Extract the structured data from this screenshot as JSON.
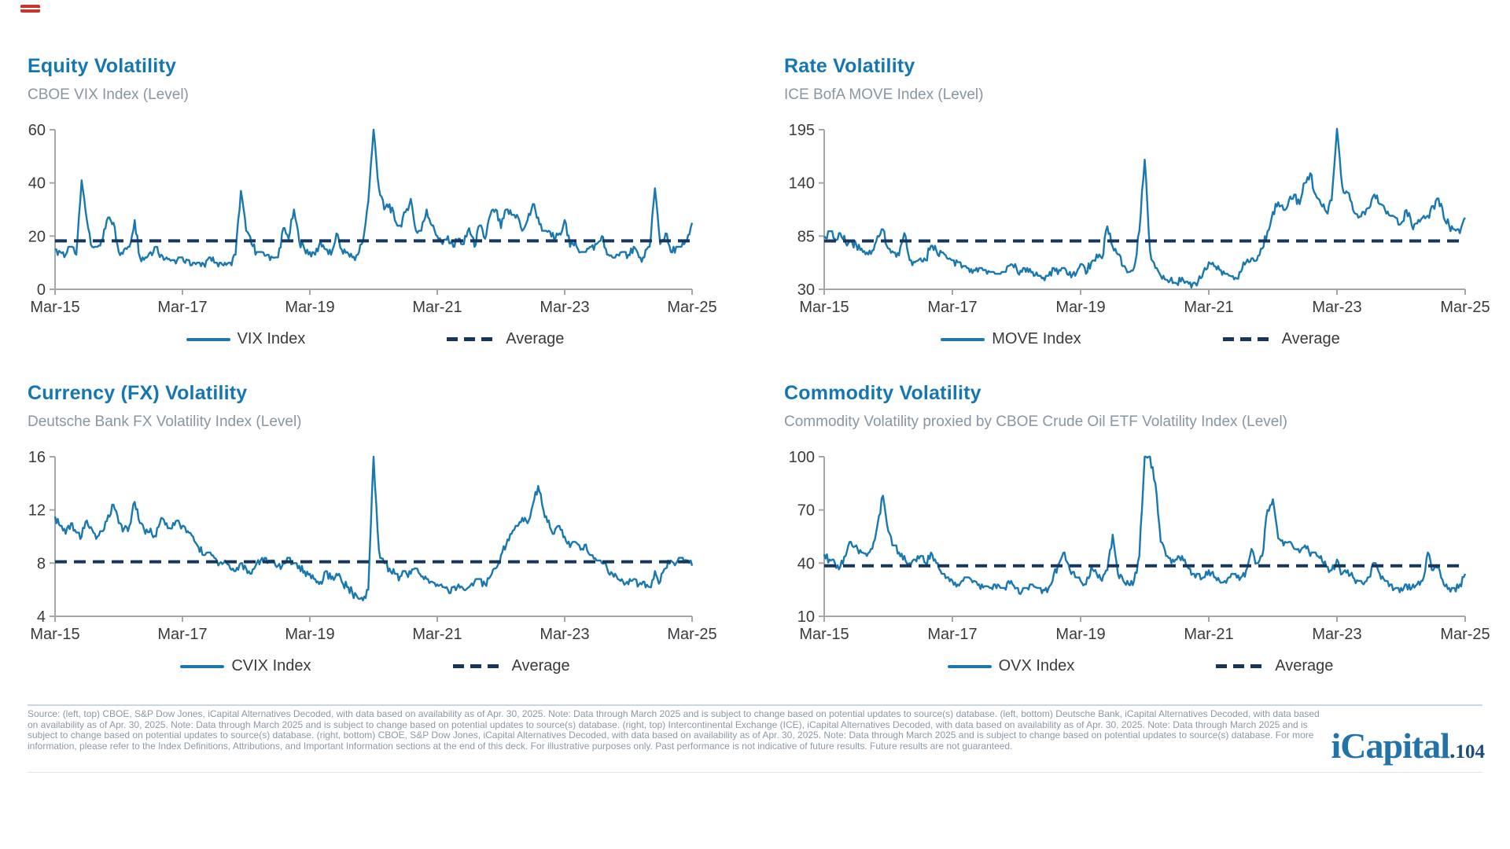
{
  "colors": {
    "accent_blue": "#1577b2",
    "series_line": "#1878af",
    "average_line": "#17365d",
    "subtitle_gray": "#8796a2",
    "axis_text": "#3a3a3e",
    "axis_line": "#a3a7ac",
    "footer_text": "#8a99a7",
    "divider": "#cbd8e2",
    "logo_blue": "#2273a9",
    "marker_red": "#c9342e"
  },
  "footer": {
    "source": "Source: (left, top) CBOE, S&P Dow Jones, iCapital Alternatives Decoded, with data based on availability as of Apr. 30, 2025. Note: Data through March 2025 and is subject to change based on potential updates to source(s) database. (left, bottom) Deutsche Bank, iCapital Alternatives Decoded, with data based on availability as of Apr. 30, 2025. Note: Data through March 2025 and is subject to change based on potential updates to source(s) database. (right, top) Intercontinental Exchange (ICE), iCapital Alternatives Decoded, with data based on availability as of Apr. 30, 2025. Note: Data through March 2025 and is subject to change based on potential updates to source(s) database. (right, bottom) CBOE, S&P Dow Jones, iCapital Alternatives Decoded, with data based on availability as of Apr. 30, 2025. Note: Data through March 2025 and is subject to change based on potential updates to source(s) database. For more information, please refer to the Index Definitions, Attributions, and Important Information sections at the end of this deck. For illustrative purposes only. Past performance is not indicative of future results. Future results are not guaranteed.",
    "logo": "iCapital",
    "logo_dot": ".",
    "page_number": "104"
  },
  "chart_data": [
    {
      "type": "line",
      "title": "Equity Volatility",
      "subtitle": "CBOE VIX Index (Level)",
      "series_name": "VIX Index",
      "average_name": "Average",
      "average": 18.2,
      "ylim": [
        0,
        60
      ],
      "yticks": [
        0,
        20,
        40,
        60
      ],
      "xticks": [
        "Mar-15",
        "Mar-17",
        "Mar-19",
        "Mar-21",
        "Mar-23",
        "Mar-25"
      ],
      "x_unit": "monthly",
      "values": [
        15,
        14,
        13,
        16,
        13,
        41,
        26,
        16,
        16,
        19,
        27,
        25,
        14,
        15,
        16,
        26,
        12,
        12,
        14,
        16,
        13,
        12,
        11,
        11,
        12,
        11,
        10,
        10,
        9.5,
        12,
        10,
        10,
        10,
        10,
        13,
        37,
        22,
        17,
        14,
        14,
        13,
        12,
        12,
        23,
        19,
        30,
        18,
        15,
        14,
        13,
        18,
        15,
        13,
        21,
        15,
        14,
        12,
        13,
        18,
        33,
        60,
        38,
        30,
        32,
        26,
        24,
        29,
        34,
        22,
        22,
        30,
        24,
        20,
        17,
        20,
        16,
        19,
        17,
        23,
        16,
        24,
        19,
        28,
        30,
        23,
        30,
        28,
        28,
        22,
        26,
        32,
        27,
        22,
        22,
        19,
        21,
        26,
        16,
        18,
        14,
        14,
        16,
        17,
        20,
        13,
        12,
        13,
        14,
        13,
        16,
        12,
        12,
        16,
        38,
        17,
        21,
        14,
        16,
        16,
        18,
        25
      ]
    },
    {
      "type": "line",
      "title": "Rate Volatility",
      "subtitle": "ICE BofA MOVE Index (Level)",
      "series_name": "MOVE Index",
      "average_name": "Average",
      "average": 80,
      "ylim": [
        30,
        195
      ],
      "yticks": [
        30,
        85,
        140,
        195
      ],
      "xticks": [
        "Mar-15",
        "Mar-17",
        "Mar-19",
        "Mar-21",
        "Mar-23",
        "Mar-25"
      ],
      "x_unit": "monthly",
      "values": [
        85,
        90,
        82,
        88,
        78,
        80,
        76,
        72,
        68,
        70,
        85,
        92,
        72,
        68,
        65,
        88,
        60,
        58,
        62,
        60,
        75,
        70,
        68,
        62,
        60,
        58,
        54,
        52,
        50,
        52,
        50,
        48,
        46,
        46,
        48,
        56,
        52,
        48,
        52,
        48,
        44,
        42,
        44,
        52,
        50,
        52,
        48,
        44,
        56,
        46,
        58,
        66,
        62,
        95,
        74,
        66,
        54,
        48,
        52,
        90,
        164,
        70,
        52,
        44,
        40,
        42,
        36,
        42,
        38,
        36,
        38,
        48,
        58,
        54,
        50,
        46,
        44,
        42,
        48,
        58,
        62,
        60,
        72,
        90,
        110,
        120,
        112,
        122,
        128,
        118,
        140,
        150,
        128,
        118,
        110,
        122,
        196,
        136,
        130,
        112,
        104,
        110,
        114,
        128,
        118,
        112,
        106,
        104,
        98,
        112,
        96,
        98,
        104,
        106,
        116,
        124,
        104,
        96,
        92,
        88,
        104
      ]
    },
    {
      "type": "line",
      "title": "Currency (FX) Volatility",
      "subtitle": "Deutsche Bank FX Volatility Index (Level)",
      "series_name": "CVIX Index",
      "average_name": "Average",
      "average": 8.1,
      "ylim": [
        4,
        16
      ],
      "yticks": [
        4,
        8,
        12,
        16
      ],
      "xticks": [
        "Mar-15",
        "Mar-17",
        "Mar-19",
        "Mar-21",
        "Mar-23",
        "Mar-25"
      ],
      "x_unit": "monthly",
      "values": [
        11.5,
        10.8,
        10.2,
        11,
        10.3,
        10,
        11.2,
        10.5,
        10,
        10.4,
        11.6,
        12.4,
        11,
        10.6,
        10.8,
        12.6,
        11,
        10.2,
        10.6,
        10,
        11.4,
        11,
        10.6,
        11.2,
        10.8,
        10.4,
        10,
        9.2,
        8.6,
        8.8,
        8.4,
        8,
        8.2,
        7.6,
        7.4,
        8,
        7.6,
        7.2,
        8,
        8.4,
        8,
        8.2,
        7.8,
        8,
        8.4,
        8,
        7.8,
        7.4,
        7.2,
        6.8,
        6.6,
        7.4,
        6.8,
        7.2,
        6.6,
        6.2,
        5.8,
        5.4,
        5.2,
        6,
        16,
        9,
        8,
        7.6,
        7.2,
        7,
        7.4,
        7.2,
        7.6,
        7,
        6.8,
        6.6,
        6.4,
        6.2,
        6,
        6.2,
        6.4,
        6,
        6.2,
        6.6,
        6.8,
        6.4,
        7,
        7.6,
        8.6,
        9.4,
        10.2,
        10.8,
        11.4,
        11,
        12.4,
        13.8,
        12,
        11.2,
        10.2,
        10.8,
        10,
        9.2,
        9.6,
        9,
        9.4,
        8.6,
        8.2,
        8,
        7.6,
        7.2,
        6.8,
        6.6,
        6.4,
        6.8,
        6.4,
        6.6,
        6.2,
        7.4,
        6.6,
        7.6,
        8.2,
        8,
        8.4,
        8.2,
        7.8
      ]
    },
    {
      "type": "line",
      "title": "Commodity Volatility",
      "subtitle": "Commodity Volatility proxied by CBOE Crude Oil ETF Volatility Index (Level)",
      "series_name": "OVX Index",
      "average_name": "Average",
      "average": 38.5,
      "ylim": [
        10,
        100
      ],
      "yticks": [
        10,
        40,
        70,
        100
      ],
      "xticks": [
        "Mar-15",
        "Mar-17",
        "Mar-19",
        "Mar-21",
        "Mar-23",
        "Mar-25"
      ],
      "x_unit": "monthly",
      "values": [
        45,
        42,
        40,
        38,
        44,
        52,
        50,
        46,
        44,
        48,
        62,
        78,
        58,
        50,
        46,
        44,
        40,
        42,
        44,
        40,
        46,
        40,
        34,
        32,
        30,
        28,
        30,
        32,
        30,
        28,
        27,
        26,
        28,
        26,
        25,
        30,
        26,
        24,
        26,
        28,
        26,
        25,
        26,
        34,
        40,
        46,
        36,
        32,
        30,
        28,
        38,
        34,
        30,
        36,
        56,
        34,
        30,
        28,
        30,
        44,
        100,
        100,
        85,
        52,
        44,
        40,
        42,
        44,
        38,
        34,
        34,
        32,
        36,
        32,
        30,
        30,
        32,
        34,
        32,
        36,
        48,
        40,
        44,
        70,
        76,
        54,
        50,
        52,
        48,
        46,
        50,
        44,
        46,
        44,
        38,
        36,
        42,
        34,
        36,
        32,
        30,
        28,
        32,
        40,
        34,
        30,
        28,
        26,
        26,
        28,
        26,
        28,
        30,
        46,
        36,
        38,
        28,
        26,
        26,
        28,
        34
      ]
    }
  ]
}
